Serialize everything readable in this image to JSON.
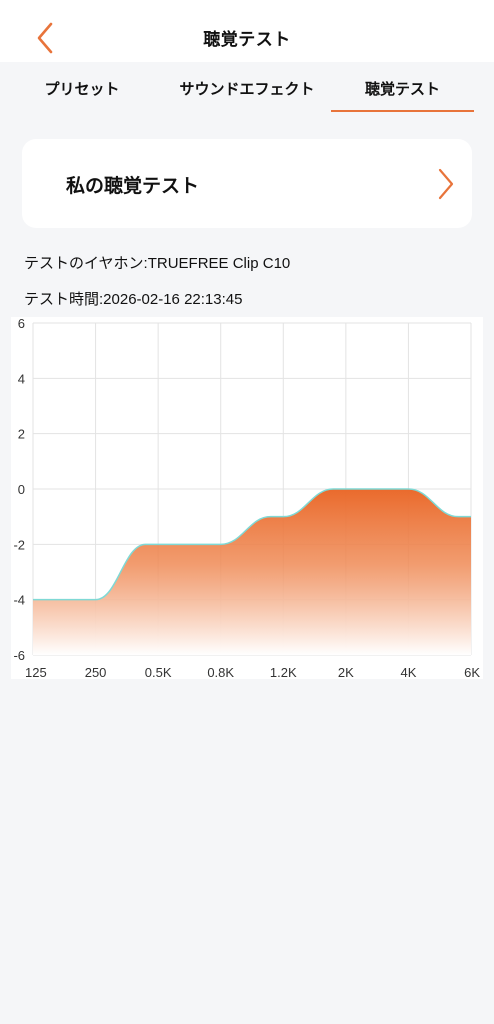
{
  "header": {
    "title": "聴覚テスト",
    "back_icon": "chevron-left-icon"
  },
  "tabs": [
    {
      "label": "プリセット",
      "active": false
    },
    {
      "label": "サウンドエフェクト",
      "active": false
    },
    {
      "label": "聴覚テスト",
      "active": true
    }
  ],
  "card": {
    "title": "私の聴覚テスト",
    "arrow_icon": "chevron-right-icon"
  },
  "info": {
    "earphone": "テストのイヤホン:TRUEFREE Clip C10",
    "test_time": "テスト時間:2026-02-16 22:13:45"
  },
  "colors": {
    "accent": "#e8743b",
    "fill_top": "#ea6a2c",
    "line": "#7fd9d5"
  },
  "chart_data": {
    "type": "area",
    "categories": [
      "125",
      "250",
      "0.5K",
      "0.8K",
      "1.2K",
      "2K",
      "4K",
      "6K"
    ],
    "values": [
      -4,
      -4,
      -2,
      -2,
      -1,
      0,
      0,
      -1
    ],
    "yticks": [
      "6",
      "4",
      "2",
      "0",
      "-2",
      "-4",
      "-6"
    ],
    "ylim": [
      -6,
      6
    ],
    "grid": true
  }
}
